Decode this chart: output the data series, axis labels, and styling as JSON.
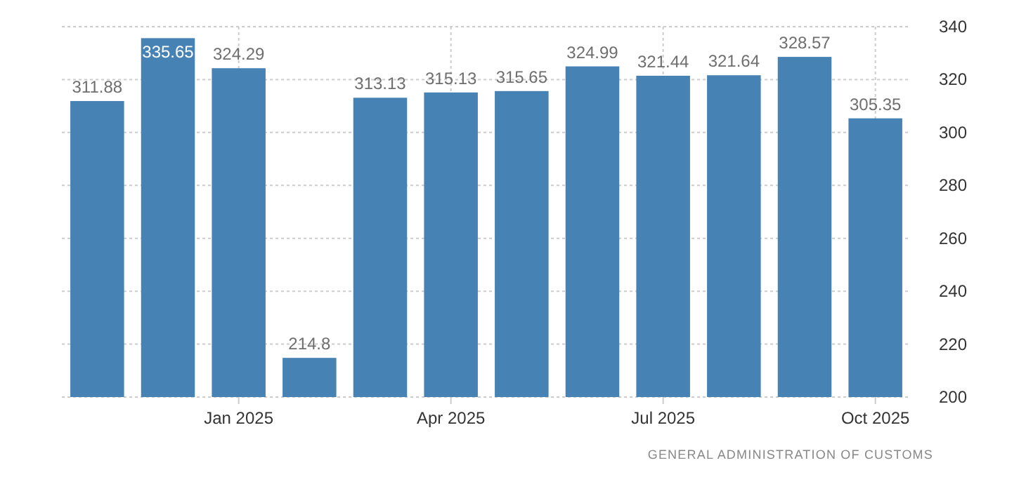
{
  "chart_data": {
    "type": "bar",
    "categories": [
      null,
      null,
      "Jan 2025",
      null,
      null,
      "Apr 2025",
      null,
      null,
      "Jul 2025",
      null,
      null,
      "Oct 2025"
    ],
    "values": [
      311.88,
      335.65,
      324.29,
      214.8,
      313.13,
      315.13,
      315.65,
      324.99,
      321.44,
      321.64,
      328.57,
      305.35
    ],
    "color": "#4682b4",
    "ylim": [
      200,
      340
    ],
    "yticks": [
      200,
      220,
      240,
      260,
      280,
      300,
      320,
      340
    ],
    "grid": true,
    "data_labels": true,
    "annotations": [
      "GENERAL ADMINISTRATION OF CUSTOMS"
    ]
  }
}
